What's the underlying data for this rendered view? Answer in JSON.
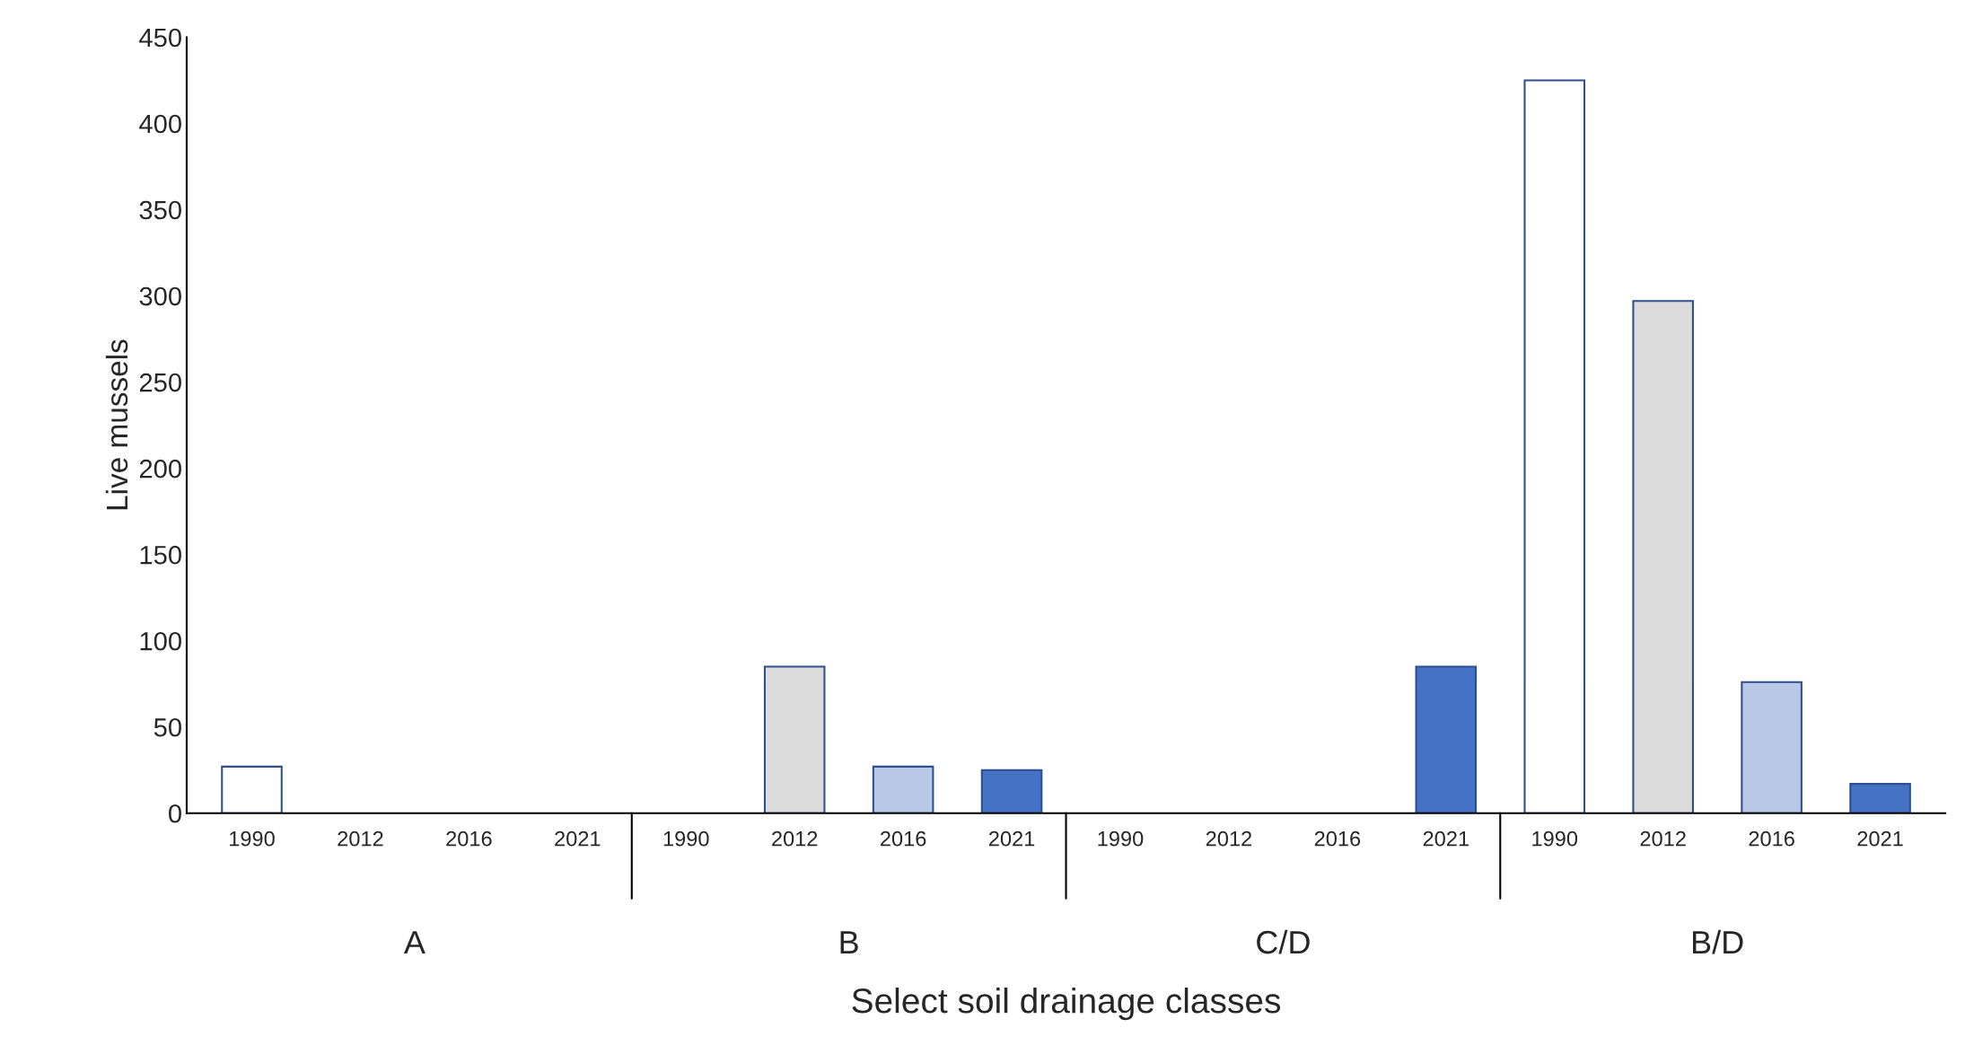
{
  "chart_data": {
    "type": "bar",
    "xlabel": "Select soil drainage classes",
    "ylabel": "Live mussels",
    "categories": [
      "1990",
      "2012",
      "2016",
      "2021",
      "1990",
      "2012",
      "2016",
      "2021",
      "1990",
      "2012",
      "2016",
      "2021",
      "1990",
      "2012",
      "2016",
      "2021"
    ],
    "values": [
      27,
      null,
      null,
      null,
      null,
      85,
      27,
      25,
      null,
      null,
      null,
      85,
      425,
      297,
      76,
      17
    ],
    "colors": [
      "#ffffff",
      "#dcdcdc",
      "#b8c8e6",
      "#4472c4",
      "#ffffff",
      "#dcdcdc",
      "#b8c8e6",
      "#4472c4",
      "#ffffff",
      "#dcdcdc",
      "#b8c8e6",
      "#4472c4",
      "#ffffff",
      "#dcdcdc",
      "#b8c8e6",
      "#4472c4"
    ],
    "annotations": [
      "A",
      "B",
      "C/D",
      "B/D"
    ],
    "ylim": [
      0,
      450
    ],
    "yticks": [
      0,
      50,
      100,
      150,
      200,
      250,
      300,
      350,
      400,
      450
    ],
    "grid": false,
    "legend": false
  }
}
